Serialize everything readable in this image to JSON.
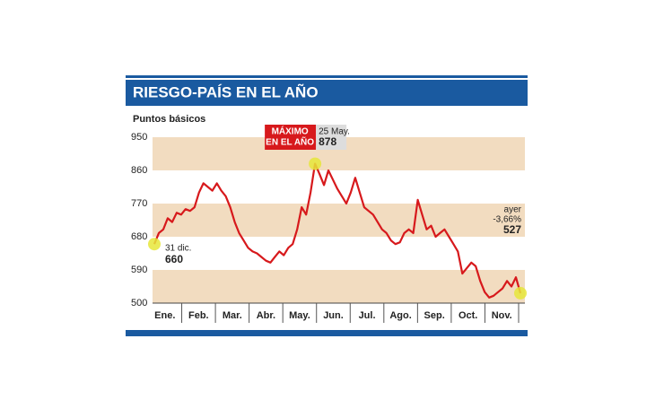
{
  "chart_data": {
    "type": "line",
    "title": "RIESGO-PAÍS EN EL AÑO",
    "subtitle": "Puntos básicos",
    "months": [
      "Ene.",
      "Feb.",
      "Mar.",
      "Abr.",
      "May.",
      "Jun.",
      "Jul.",
      "Ago.",
      "Sep.",
      "Oct.",
      "Nov."
    ],
    "values": [
      660,
      690,
      700,
      730,
      720,
      745,
      740,
      755,
      750,
      760,
      800,
      825,
      815,
      805,
      825,
      805,
      790,
      760,
      720,
      690,
      670,
      650,
      640,
      635,
      625,
      615,
      610,
      625,
      640,
      630,
      650,
      660,
      700,
      760,
      740,
      800,
      878,
      850,
      820,
      860,
      835,
      810,
      790,
      770,
      800,
      840,
      800,
      760,
      750,
      740,
      720,
      700,
      690,
      670,
      660,
      665,
      690,
      700,
      690,
      780,
      740,
      700,
      710,
      680,
      690,
      700,
      680,
      660,
      640,
      580,
      595,
      610,
      600,
      560,
      530,
      515,
      520,
      530,
      540,
      560,
      545,
      570,
      527
    ],
    "color": "#d7191c",
    "band_color": "#f2dcc0",
    "bands": true,
    "ylim": [
      500,
      950
    ],
    "yticks": [
      500,
      590,
      680,
      770,
      860,
      950
    ],
    "annotations": {
      "start_date": "31 dic.",
      "max_title": [
        "MÁXIMO",
        "EN EL AÑO"
      ],
      "max_date": "25 May.",
      "end_title": "ayer",
      "end_change": "-3,66%"
    }
  }
}
